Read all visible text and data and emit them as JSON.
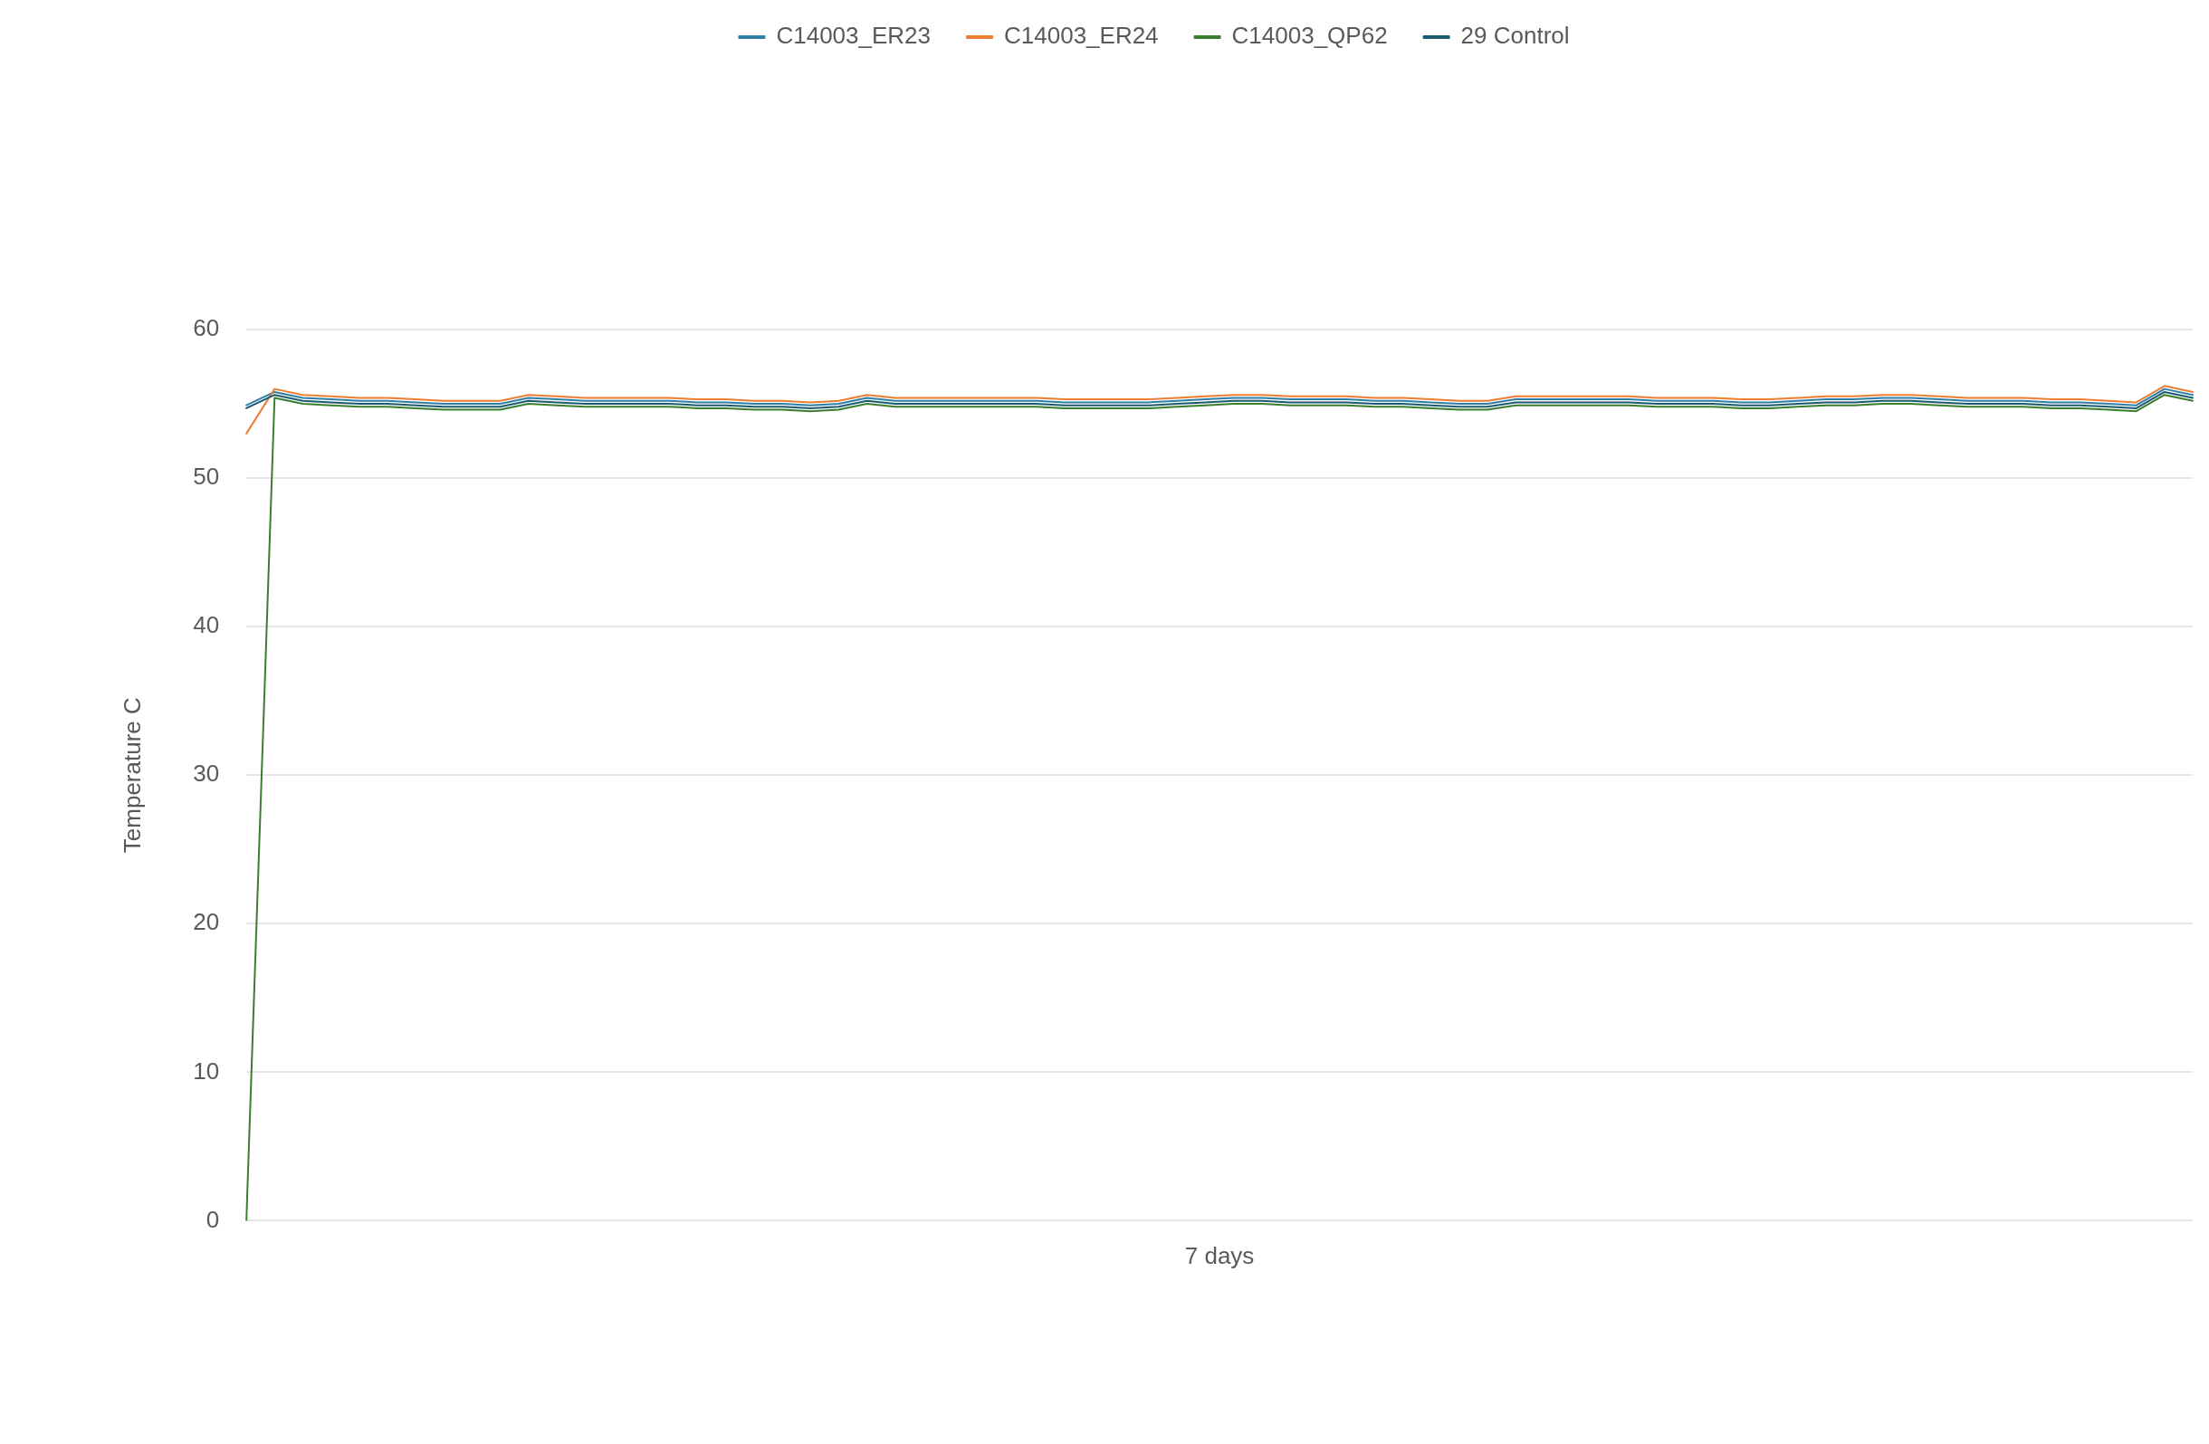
{
  "chart_data": {
    "type": "line",
    "xlabel": "7 days",
    "ylabel": "Temperature C",
    "legend": "top",
    "grid": "y",
    "marker": "none",
    "line_style": "solid",
    "ylim": [
      0,
      60
    ],
    "yticks": [
      0,
      10,
      20,
      30,
      40,
      50,
      60
    ],
    "categories": [
      null,
      null,
      null,
      null,
      null,
      null,
      null,
      null,
      null,
      null,
      null,
      null,
      null,
      null,
      null,
      null,
      null,
      null,
      null,
      null,
      null,
      null,
      null,
      null,
      null,
      null,
      null,
      null,
      null,
      null,
      null,
      null,
      null,
      null,
      null,
      null,
      null,
      null,
      null,
      null,
      null,
      null,
      null,
      null,
      null,
      null,
      null,
      null,
      null,
      null,
      null,
      null,
      null,
      null,
      null,
      null,
      null,
      null,
      null,
      null,
      null,
      null,
      null,
      null,
      null,
      null,
      null,
      null,
      null,
      null
    ],
    "series": [
      {
        "name": "C14003_ER23",
        "color": "#2e7fa6",
        "values": [
          54.9,
          55.8,
          55.4,
          55.3,
          55.2,
          55.2,
          55.1,
          55.0,
          55.0,
          55.0,
          55.4,
          55.3,
          55.2,
          55.2,
          55.2,
          55.2,
          55.1,
          55.1,
          55.0,
          55.0,
          54.9,
          55.0,
          55.4,
          55.2,
          55.2,
          55.2,
          55.2,
          55.2,
          55.2,
          55.1,
          55.1,
          55.1,
          55.1,
          55.2,
          55.3,
          55.4,
          55.4,
          55.3,
          55.3,
          55.3,
          55.2,
          55.2,
          55.1,
          55.0,
          55.0,
          55.3,
          55.3,
          55.3,
          55.3,
          55.3,
          55.2,
          55.2,
          55.2,
          55.1,
          55.1,
          55.2,
          55.3,
          55.3,
          55.4,
          55.4,
          55.3,
          55.2,
          55.2,
          55.2,
          55.1,
          55.1,
          55.0,
          54.9,
          56.0,
          55.6
        ]
      },
      {
        "name": "C14003_ER24",
        "color": "#ed7d31",
        "values": [
          53.0,
          56.0,
          55.6,
          55.5,
          55.4,
          55.4,
          55.3,
          55.2,
          55.2,
          55.2,
          55.6,
          55.5,
          55.4,
          55.4,
          55.4,
          55.4,
          55.3,
          55.3,
          55.2,
          55.2,
          55.1,
          55.2,
          55.6,
          55.4,
          55.4,
          55.4,
          55.4,
          55.4,
          55.4,
          55.3,
          55.3,
          55.3,
          55.3,
          55.4,
          55.5,
          55.6,
          55.6,
          55.5,
          55.5,
          55.5,
          55.4,
          55.4,
          55.3,
          55.2,
          55.2,
          55.5,
          55.5,
          55.5,
          55.5,
          55.5,
          55.4,
          55.4,
          55.4,
          55.3,
          55.3,
          55.4,
          55.5,
          55.5,
          55.6,
          55.6,
          55.5,
          55.4,
          55.4,
          55.4,
          55.3,
          55.3,
          55.2,
          55.1,
          56.2,
          55.8
        ]
      },
      {
        "name": "C14003_QP62",
        "color": "#3a7d2c",
        "values": [
          0,
          55.4,
          55.0,
          54.9,
          54.8,
          54.8,
          54.7,
          54.6,
          54.6,
          54.6,
          55.0,
          54.9,
          54.8,
          54.8,
          54.8,
          54.8,
          54.7,
          54.7,
          54.6,
          54.6,
          54.5,
          54.6,
          55.0,
          54.8,
          54.8,
          54.8,
          54.8,
          54.8,
          54.8,
          54.7,
          54.7,
          54.7,
          54.7,
          54.8,
          54.9,
          55.0,
          55.0,
          54.9,
          54.9,
          54.9,
          54.8,
          54.8,
          54.7,
          54.6,
          54.6,
          54.9,
          54.9,
          54.9,
          54.9,
          54.9,
          54.8,
          54.8,
          54.8,
          54.7,
          54.7,
          54.8,
          54.9,
          54.9,
          55.0,
          55.0,
          54.9,
          54.8,
          54.8,
          54.8,
          54.7,
          54.7,
          54.6,
          54.5,
          55.6,
          55.2
        ]
      },
      {
        "name": "29 Control",
        "color": "#1b5b72",
        "values": [
          54.7,
          55.6,
          55.2,
          55.1,
          55.0,
          55.0,
          54.9,
          54.8,
          54.8,
          54.8,
          55.2,
          55.1,
          55.0,
          55.0,
          55.0,
          55.0,
          54.9,
          54.9,
          54.8,
          54.8,
          54.7,
          54.8,
          55.2,
          55.0,
          55.0,
          55.0,
          55.0,
          55.0,
          55.0,
          54.9,
          54.9,
          54.9,
          54.9,
          55.0,
          55.1,
          55.2,
          55.2,
          55.1,
          55.1,
          55.1,
          55.0,
          55.0,
          54.9,
          54.8,
          54.8,
          55.1,
          55.1,
          55.1,
          55.1,
          55.1,
          55.0,
          55.0,
          55.0,
          54.9,
          54.9,
          55.0,
          55.1,
          55.1,
          55.2,
          55.2,
          55.1,
          55.0,
          55.0,
          55.0,
          54.9,
          54.9,
          54.8,
          54.7,
          55.8,
          55.4
        ]
      }
    ]
  }
}
